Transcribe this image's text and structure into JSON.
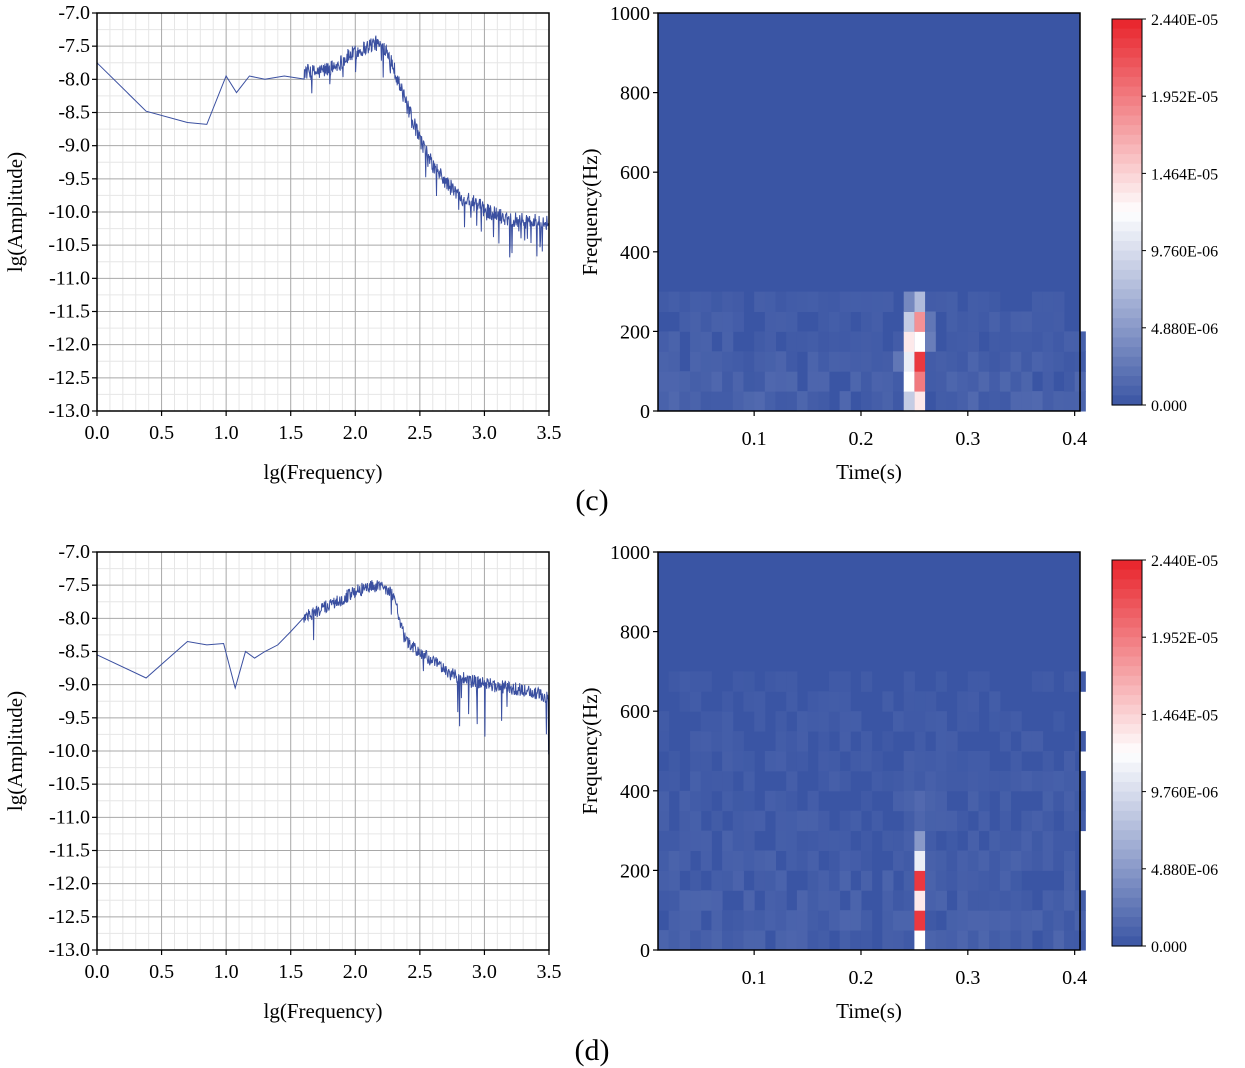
{
  "panels": [
    {
      "label": "(c)",
      "spectrum": {
        "type": "line",
        "xlabel": "lg(Frequency)",
        "ylabel": "lg(Amplitude)",
        "xlim": [
          0.0,
          3.5
        ],
        "ylim": [
          -13.0,
          -7.0
        ],
        "xticks": [
          "0.0",
          "0.5",
          "1.0",
          "1.5",
          "2.0",
          "2.5",
          "3.0",
          "3.5"
        ],
        "yticks": [
          "-7.0",
          "-7.5",
          "-8.0",
          "-8.5",
          "-9.0",
          "-9.5",
          "-10.0",
          "-10.5",
          "-11.0",
          "-11.5",
          "-12.0",
          "-12.5",
          "-13.0"
        ],
        "grid": true,
        "line_color": "#3a4fa0",
        "trend": [
          [
            0.0,
            -7.75
          ],
          [
            0.38,
            -8.48
          ],
          [
            0.7,
            -8.65
          ],
          [
            0.85,
            -8.68
          ],
          [
            1.0,
            -7.95
          ],
          [
            1.08,
            -8.2
          ],
          [
            1.18,
            -7.95
          ],
          [
            1.3,
            -8.0
          ],
          [
            1.45,
            -7.95
          ],
          [
            1.6,
            -7.88
          ],
          [
            1.7,
            -7.9
          ],
          [
            1.85,
            -7.8
          ],
          [
            1.95,
            -7.65
          ],
          [
            2.05,
            -7.55
          ],
          [
            2.15,
            -7.45
          ],
          [
            2.25,
            -7.55
          ],
          [
            2.32,
            -7.95
          ],
          [
            2.4,
            -8.4
          ],
          [
            2.5,
            -8.9
          ],
          [
            2.6,
            -9.3
          ],
          [
            2.7,
            -9.55
          ],
          [
            2.8,
            -9.75
          ],
          [
            2.9,
            -9.85
          ],
          [
            3.0,
            -9.95
          ],
          [
            3.1,
            -10.05
          ],
          [
            3.2,
            -10.1
          ],
          [
            3.3,
            -10.13
          ],
          [
            3.4,
            -10.15
          ],
          [
            3.5,
            -10.16
          ]
        ],
        "noise_start": 1.6,
        "noise_amp": 0.12,
        "spike_start": 2.35,
        "spike_depth": 0.6
      },
      "spectrogram": {
        "type": "heatmap",
        "xlabel": "Time(s)",
        "ylabel": "Frequency(Hz)",
        "xlim": [
          0.01,
          0.405
        ],
        "ylim": [
          0,
          1000
        ],
        "xticks": [
          "0.1",
          "0.2",
          "0.3",
          "0.4"
        ],
        "yticks": [
          "0",
          "200",
          "400",
          "600",
          "800",
          "1000"
        ],
        "bin_width_s": 0.01,
        "bin_height_hz": 50,
        "peak_column_s": 0.255,
        "cells": [
          {
            "t": 0.255,
            "f": 0,
            "v": 0.55
          },
          {
            "t": 0.255,
            "f": 50,
            "v": 0.8
          },
          {
            "t": 0.255,
            "f": 100,
            "v": 0.95
          },
          {
            "t": 0.255,
            "f": 150,
            "v": 0.5
          },
          {
            "t": 0.255,
            "f": 200,
            "v": 0.75
          },
          {
            "t": 0.255,
            "f": 250,
            "v": 0.3
          },
          {
            "t": 0.245,
            "f": 0,
            "v": 0.35
          },
          {
            "t": 0.245,
            "f": 50,
            "v": 0.5
          },
          {
            "t": 0.245,
            "f": 100,
            "v": 0.45
          },
          {
            "t": 0.245,
            "f": 150,
            "v": 0.55
          },
          {
            "t": 0.245,
            "f": 200,
            "v": 0.35
          },
          {
            "t": 0.245,
            "f": 250,
            "v": 0.15
          },
          {
            "t": 0.265,
            "f": 150,
            "v": 0.12
          },
          {
            "t": 0.265,
            "f": 200,
            "v": 0.1
          },
          {
            "t": 0.235,
            "f": 100,
            "v": 0.1
          }
        ],
        "background_noise": {
          "fmax": 300,
          "level": 0.06
        },
        "colorbar": {
          "ticks": [
            "2.440E-05",
            "1.952E-05",
            "1.464E-05",
            "9.760E-06",
            "4.880E-06",
            "0.000"
          ],
          "colors": [
            "#e8222a",
            "#ffffff",
            "#3a55a4"
          ]
        }
      }
    },
    {
      "label": "(d)",
      "spectrum": {
        "type": "line",
        "xlabel": "lg(Frequency)",
        "ylabel": "lg(Amplitude)",
        "xlim": [
          0.0,
          3.5
        ],
        "ylim": [
          -13.0,
          -7.0
        ],
        "xticks": [
          "0.0",
          "0.5",
          "1.0",
          "1.5",
          "2.0",
          "2.5",
          "3.0",
          "3.5"
        ],
        "yticks": [
          "-7.0",
          "-7.5",
          "-8.0",
          "-8.5",
          "-9.0",
          "-9.5",
          "-10.0",
          "-10.5",
          "-11.0",
          "-11.5",
          "-12.0",
          "-12.5",
          "-13.0"
        ],
        "grid": true,
        "line_color": "#3a4fa0",
        "trend": [
          [
            0.0,
            -8.55
          ],
          [
            0.38,
            -8.9
          ],
          [
            0.7,
            -8.35
          ],
          [
            0.85,
            -8.4
          ],
          [
            0.98,
            -8.38
          ],
          [
            1.07,
            -9.05
          ],
          [
            1.15,
            -8.5
          ],
          [
            1.22,
            -8.6
          ],
          [
            1.3,
            -8.5
          ],
          [
            1.4,
            -8.4
          ],
          [
            1.5,
            -8.2
          ],
          [
            1.6,
            -8.0
          ],
          [
            1.75,
            -7.85
          ],
          [
            1.85,
            -7.75
          ],
          [
            2.0,
            -7.6
          ],
          [
            2.1,
            -7.52
          ],
          [
            2.2,
            -7.5
          ],
          [
            2.3,
            -7.65
          ],
          [
            2.38,
            -8.3
          ],
          [
            2.45,
            -8.45
          ],
          [
            2.6,
            -8.65
          ],
          [
            2.75,
            -8.85
          ],
          [
            2.9,
            -8.95
          ],
          [
            3.05,
            -9.0
          ],
          [
            3.2,
            -9.05
          ],
          [
            3.35,
            -9.1
          ],
          [
            3.5,
            -9.2
          ]
        ],
        "noise_start": 1.6,
        "noise_amp": 0.1,
        "spike_start": 2.38,
        "spike_depth": 0.9
      },
      "spectrogram": {
        "type": "heatmap",
        "xlabel": "Time(s)",
        "ylabel": "Frequency(Hz)",
        "xlim": [
          0.01,
          0.405
        ],
        "ylim": [
          0,
          1000
        ],
        "xticks": [
          "0.1",
          "0.2",
          "0.3",
          "0.4"
        ],
        "yticks": [
          "0",
          "200",
          "400",
          "600",
          "800",
          "1000"
        ],
        "bin_width_s": 0.01,
        "bin_height_hz": 50,
        "peak_column_s": 0.255,
        "cells": [
          {
            "t": 0.255,
            "f": 0,
            "v": 0.5
          },
          {
            "t": 0.255,
            "f": 50,
            "v": 0.95
          },
          {
            "t": 0.255,
            "f": 100,
            "v": 0.55
          },
          {
            "t": 0.255,
            "f": 150,
            "v": 0.95
          },
          {
            "t": 0.255,
            "f": 200,
            "v": 0.45
          },
          {
            "t": 0.255,
            "f": 250,
            "v": 0.2
          },
          {
            "t": 0.255,
            "f": 300,
            "v": 0.05
          },
          {
            "t": 0.255,
            "f": 350,
            "v": 0.06
          },
          {
            "t": 0.245,
            "f": 350,
            "v": 0.04
          },
          {
            "t": 0.265,
            "f": 350,
            "v": 0.04
          }
        ],
        "background_noise": {
          "fmax": 700,
          "level": 0.05
        },
        "colorbar": {
          "ticks": [
            "2.440E-05",
            "1.952E-05",
            "1.464E-05",
            "9.760E-06",
            "4.880E-06",
            "0.000"
          ],
          "colors": [
            "#e8222a",
            "#ffffff",
            "#3a55a4"
          ]
        }
      }
    }
  ]
}
